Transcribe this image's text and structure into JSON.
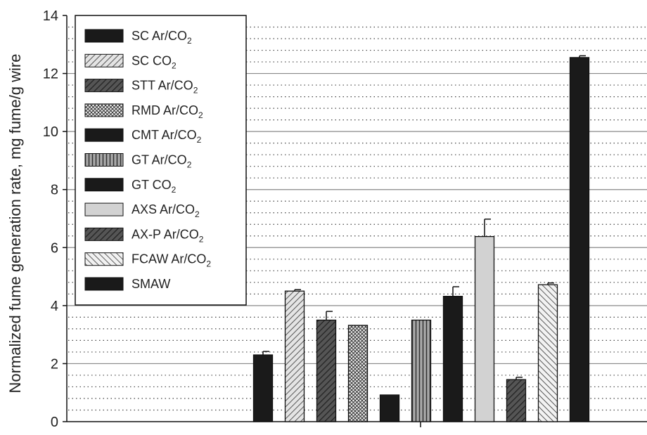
{
  "chart_data": {
    "type": "bar",
    "ylabel": "Normalized fume generation rate, mg fume/g wire",
    "xlabel": "",
    "ylim": [
      0,
      14
    ],
    "yticks": [
      0,
      2,
      4,
      6,
      8,
      10,
      12,
      14
    ],
    "minor_grid_step": 0.4,
    "legend_position": "top-left",
    "series": [
      {
        "name": "SC Ar/CO2",
        "label_main": "SC Ar/CO",
        "label_sub": "2",
        "value": 2.3,
        "error": 0.12,
        "pattern": "black"
      },
      {
        "name": "SC CO2",
        "label_main": "SC CO",
        "label_sub": "2",
        "value": 4.5,
        "error": 0.05,
        "pattern": "diag-light"
      },
      {
        "name": "STT Ar/CO2",
        "label_main": "STT Ar/CO",
        "label_sub": "2",
        "value": 3.5,
        "error": 0.3,
        "pattern": "diag-dark"
      },
      {
        "name": "RMD Ar/CO2",
        "label_main": "RMD Ar/CO",
        "label_sub": "2",
        "value": 3.32,
        "error": 0.0,
        "pattern": "crosshatch"
      },
      {
        "name": "CMT Ar/CO2",
        "label_main": "CMT Ar/CO",
        "label_sub": "2",
        "value": 0.92,
        "error": 0.0,
        "pattern": "black"
      },
      {
        "name": "GT Ar/CO2",
        "label_main": "GT Ar/CO",
        "label_sub": "2",
        "value": 3.5,
        "error": 0.0,
        "pattern": "vertical"
      },
      {
        "name": "GT CO2",
        "label_main": "GT CO",
        "label_sub": "2",
        "value": 4.32,
        "error": 0.33,
        "pattern": "black"
      },
      {
        "name": "AXS Ar/CO2",
        "label_main": "AXS Ar/CO",
        "label_sub": "2",
        "value": 6.38,
        "error": 0.6,
        "pattern": "light-gray"
      },
      {
        "name": "AX-P Ar/CO2",
        "label_main": "AX-P Ar/CO",
        "label_sub": "2",
        "value": 1.45,
        "error": 0.08,
        "pattern": "diag-dark"
      },
      {
        "name": "FCAW Ar/CO2",
        "label_main": "FCAW Ar/CO",
        "label_sub": "2",
        "value": 4.72,
        "error": 0.06,
        "pattern": "diag-back"
      },
      {
        "name": "SMAW",
        "label_main": "SMAW",
        "label_sub": "",
        "value": 12.55,
        "error": 0.06,
        "pattern": "black"
      }
    ]
  }
}
